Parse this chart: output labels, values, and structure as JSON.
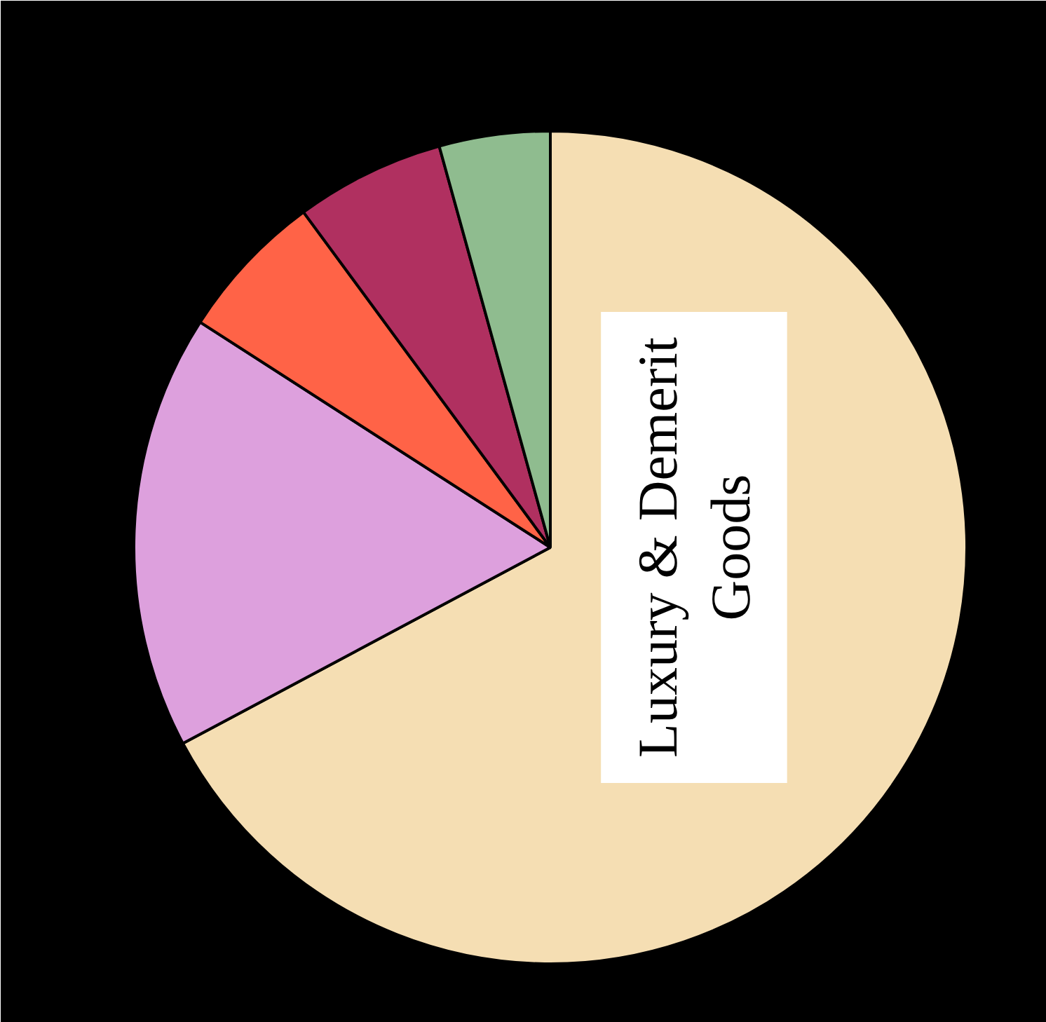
{
  "chart_data": {
    "type": "pie",
    "categories": [
      "Luxury & Demerit Goods",
      null,
      null,
      null,
      null
    ],
    "values": [
      67.2,
      16.9,
      5.8,
      5.8,
      4.3
    ],
    "colors": [
      "#f5deb3",
      "#dda0dd",
      "#ff6347",
      "#b03060",
      "#8fbc8f"
    ]
  }
}
